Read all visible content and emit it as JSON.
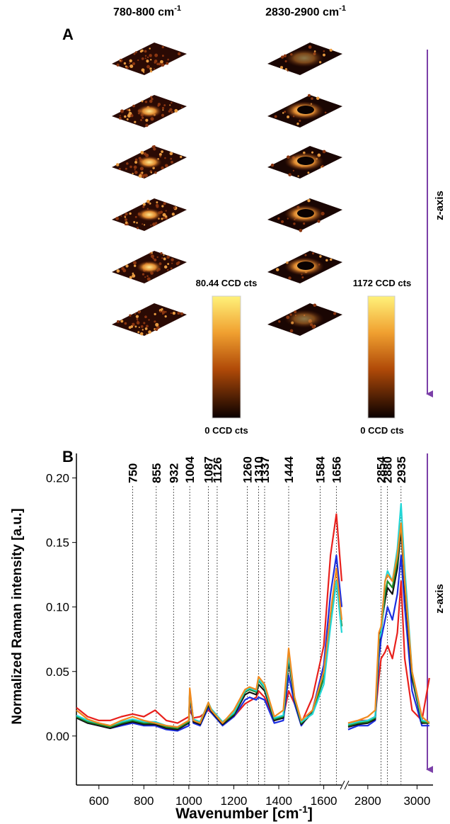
{
  "panel_a": {
    "label": "A",
    "columns": [
      {
        "text": "780-800 cm",
        "sup": "-1"
      },
      {
        "text": "2830-2900 cm",
        "sup": "-1"
      }
    ],
    "colorbars": [
      {
        "max_label": "80.44 CCD cts",
        "min_label": "0 CCD cts"
      },
      {
        "max_label": "1172 CCD cts",
        "min_label": "0 CCD cts"
      }
    ],
    "axis_label": "z-axis"
  },
  "chart_data": {
    "type": "line",
    "label": "B",
    "axis_label": "z-axis",
    "x_label": {
      "text": "Wavenumber [cm",
      "sup": "-1",
      "end": "]"
    },
    "y_label": "Normalized Raman intensity [a.u.]",
    "xlim": [
      500,
      3065
    ],
    "xbreak": [
      1680,
      2720
    ],
    "xticks": [
      600,
      800,
      1000,
      1200,
      1400,
      1600,
      2800,
      3000
    ],
    "ylim": [
      -0.038,
      0.219
    ],
    "yticks": [
      {
        "value": 0,
        "label": "0.00"
      },
      {
        "value": 0.05,
        "label": "0.05"
      },
      {
        "value": 0.1,
        "label": "0.10"
      },
      {
        "value": 0.15,
        "label": "0.15"
      },
      {
        "value": 0.2,
        "label": "0.20"
      }
    ],
    "peak_lines": [
      750,
      855,
      932,
      1004,
      1087,
      1126,
      1260,
      1310,
      1337,
      1444,
      1584,
      1656,
      2854,
      2880,
      2935
    ],
    "x": [
      500,
      550,
      600,
      650,
      700,
      750,
      800,
      850,
      900,
      950,
      1000,
      1004,
      1020,
      1050,
      1087,
      1100,
      1150,
      1200,
      1250,
      1270,
      1300,
      1310,
      1337,
      1380,
      1420,
      1444,
      1470,
      1500,
      1550,
      1600,
      1630,
      1656,
      1680,
      2720,
      2760,
      2800,
      2830,
      2845,
      2854,
      2870,
      2880,
      2900,
      2920,
      2935,
      2950,
      2980,
      3020,
      3050
    ],
    "series": [
      {
        "color": "#e8201c",
        "values": [
          0.022,
          0.015,
          0.012,
          0.012,
          0.015,
          0.017,
          0.015,
          0.02,
          0.012,
          0.01,
          0.015,
          0.02,
          0.014,
          0.015,
          0.02,
          0.018,
          0.01,
          0.015,
          0.025,
          0.027,
          0.03,
          0.035,
          0.03,
          0.012,
          0.015,
          0.035,
          0.025,
          0.01,
          0.03,
          0.07,
          0.14,
          0.172,
          0.12,
          0.01,
          0.012,
          0.012,
          0.015,
          0.045,
          0.06,
          0.065,
          0.07,
          0.06,
          0.08,
          0.12,
          0.06,
          0.02,
          0.012,
          0.045
        ]
      },
      {
        "color": "#1c2ee0",
        "values": [
          0.015,
          0.01,
          0.008,
          0.006,
          0.008,
          0.01,
          0.008,
          0.008,
          0.005,
          0.004,
          0.008,
          0.03,
          0.01,
          0.008,
          0.022,
          0.018,
          0.008,
          0.015,
          0.028,
          0.03,
          0.028,
          0.03,
          0.028,
          0.01,
          0.012,
          0.047,
          0.025,
          0.008,
          0.02,
          0.055,
          0.11,
          0.14,
          0.1,
          0.005,
          0.008,
          0.008,
          0.012,
          0.06,
          0.075,
          0.09,
          0.1,
          0.09,
          0.11,
          0.14,
          0.1,
          0.035,
          0.008,
          0.008
        ]
      },
      {
        "color": "#111111",
        "values": [
          0.014,
          0.01,
          0.008,
          0.006,
          0.009,
          0.011,
          0.009,
          0.009,
          0.006,
          0.005,
          0.01,
          0.033,
          0.011,
          0.009,
          0.024,
          0.019,
          0.009,
          0.016,
          0.032,
          0.034,
          0.032,
          0.04,
          0.035,
          0.012,
          0.014,
          0.058,
          0.028,
          0.009,
          0.018,
          0.045,
          0.09,
          0.12,
          0.085,
          0.007,
          0.009,
          0.01,
          0.013,
          0.07,
          0.085,
          0.105,
          0.115,
          0.11,
          0.13,
          0.16,
          0.115,
          0.045,
          0.01,
          0.01
        ]
      },
      {
        "color": "#1f8a2a",
        "values": [
          0.015,
          0.011,
          0.009,
          0.007,
          0.01,
          0.012,
          0.01,
          0.01,
          0.007,
          0.006,
          0.011,
          0.034,
          0.012,
          0.01,
          0.025,
          0.02,
          0.01,
          0.017,
          0.034,
          0.036,
          0.034,
          0.043,
          0.037,
          0.013,
          0.015,
          0.062,
          0.029,
          0.01,
          0.018,
          0.045,
          0.09,
          0.12,
          0.085,
          0.008,
          0.01,
          0.011,
          0.014,
          0.075,
          0.08,
          0.11,
          0.12,
          0.115,
          0.135,
          0.165,
          0.12,
          0.048,
          0.011,
          0.01
        ]
      },
      {
        "color": "#22d6d6",
        "values": [
          0.016,
          0.012,
          0.01,
          0.008,
          0.011,
          0.013,
          0.011,
          0.011,
          0.008,
          0.007,
          0.012,
          0.035,
          0.013,
          0.011,
          0.026,
          0.021,
          0.011,
          0.018,
          0.035,
          0.037,
          0.035,
          0.044,
          0.038,
          0.014,
          0.016,
          0.063,
          0.03,
          0.011,
          0.017,
          0.04,
          0.085,
          0.12,
          0.08,
          0.009,
          0.011,
          0.012,
          0.015,
          0.075,
          0.08,
          0.12,
          0.128,
          0.12,
          0.145,
          0.18,
          0.13,
          0.05,
          0.012,
          0.011
        ]
      },
      {
        "color": "#f08a1e",
        "values": [
          0.02,
          0.013,
          0.01,
          0.008,
          0.012,
          0.015,
          0.012,
          0.01,
          0.008,
          0.007,
          0.012,
          0.037,
          0.012,
          0.01,
          0.026,
          0.02,
          0.01,
          0.02,
          0.036,
          0.038,
          0.036,
          0.046,
          0.04,
          0.015,
          0.02,
          0.068,
          0.03,
          0.012,
          0.02,
          0.05,
          0.095,
          0.13,
          0.09,
          0.01,
          0.012,
          0.015,
          0.02,
          0.08,
          0.085,
          0.12,
          0.125,
          0.12,
          0.14,
          0.165,
          0.12,
          0.05,
          0.015,
          0.01
        ]
      }
    ]
  }
}
